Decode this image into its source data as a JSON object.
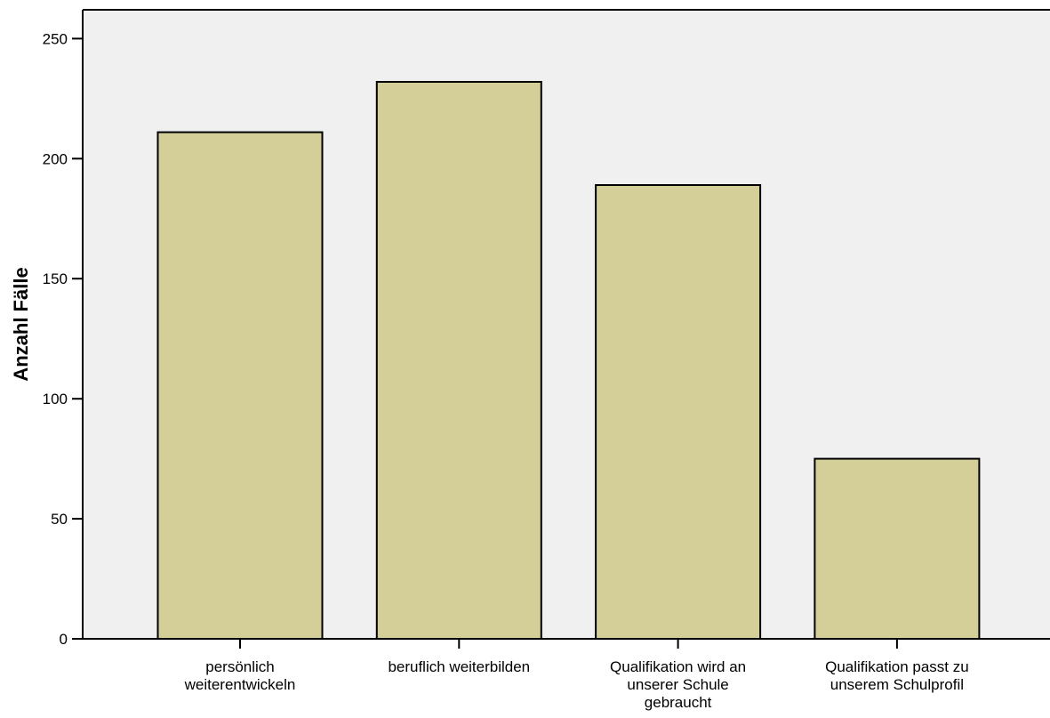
{
  "chart_data": {
    "type": "bar",
    "categories": [
      "persönlich weiterentwickeln",
      "beruflich weiterbilden",
      "Qualifikation wird an unserer Schule gebraucht",
      "Qualifikation passt zu unserem Schulprofil"
    ],
    "category_label_lines": [
      [
        "persönlich",
        "weiterentwickeln"
      ],
      [
        "beruflich weiterbilden"
      ],
      [
        "Qualifikation wird an",
        "unserer Schule",
        "gebraucht"
      ],
      [
        "Qualifikation passt zu",
        "unserem Schulprofil"
      ]
    ],
    "values": [
      211,
      232,
      189,
      75
    ],
    "title": "",
    "xlabel": "",
    "ylabel": "Anzahl Fälle",
    "ylim": [
      0,
      262
    ],
    "yticks": [
      0,
      50,
      100,
      150,
      200,
      250
    ],
    "grid": false,
    "legend": "none",
    "colors": {
      "bar_fill": "#d4cf99",
      "bar_stroke": "#000000",
      "plot_background": "#f0f0f0",
      "page_background": "#ffffff"
    }
  }
}
